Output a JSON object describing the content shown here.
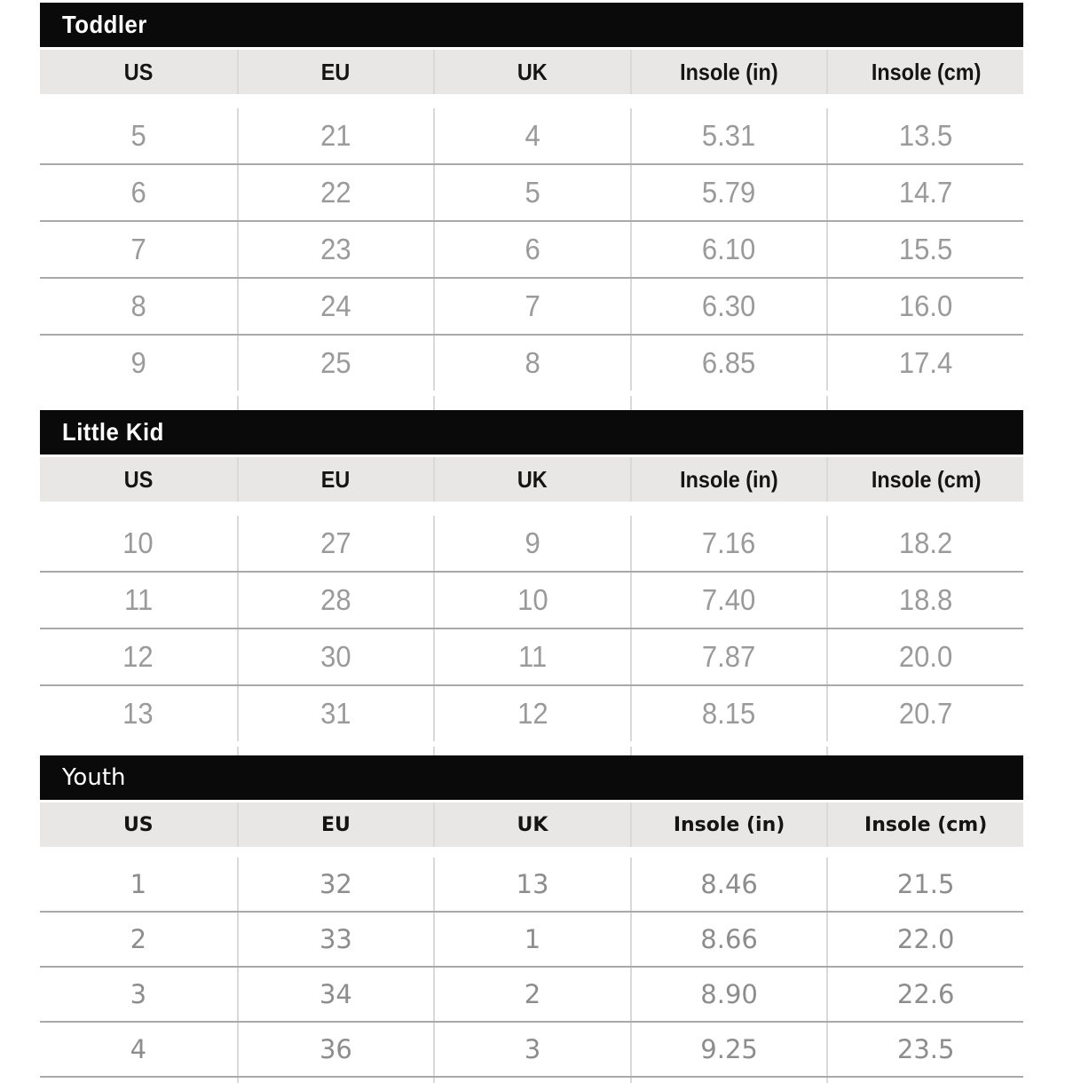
{
  "chart_data": [
    {
      "type": "table",
      "title": "Toddler",
      "columns": [
        "US",
        "EU",
        "UK",
        "Insole (in)",
        "Insole (cm)"
      ],
      "rows": [
        [
          "5",
          "21",
          "4",
          "5.31",
          "13.5"
        ],
        [
          "6",
          "22",
          "5",
          "5.79",
          "14.7"
        ],
        [
          "7",
          "23",
          "6",
          "6.10",
          "15.5"
        ],
        [
          "8",
          "24",
          "7",
          "6.30",
          "16.0"
        ],
        [
          "9",
          "25",
          "8",
          "6.85",
          "17.4"
        ]
      ]
    },
    {
      "type": "table",
      "title": "Little Kid",
      "columns": [
        "US",
        "EU",
        "UK",
        "Insole (in)",
        "Insole (cm)"
      ],
      "rows": [
        [
          "10",
          "27",
          "9",
          "7.16",
          "18.2"
        ],
        [
          "11",
          "28",
          "10",
          "7.40",
          "18.8"
        ],
        [
          "12",
          "30",
          "11",
          "7.87",
          "20.0"
        ],
        [
          "13",
          "31",
          "12",
          "8.15",
          "20.7"
        ]
      ]
    },
    {
      "type": "table",
      "title": "Youth",
      "columns": [
        "US",
        "EU",
        "UK",
        "Insole (in)",
        "Insole (cm)"
      ],
      "rows": [
        [
          "1",
          "32",
          "13",
          "8.46",
          "21.5"
        ],
        [
          "2",
          "33",
          "1",
          "8.66",
          "22.0"
        ],
        [
          "3",
          "34",
          "2",
          "8.90",
          "22.6"
        ],
        [
          "4",
          "36",
          "3",
          "9.25",
          "23.5"
        ]
      ]
    }
  ],
  "colors": {
    "section_bar_bg": "#0a0a0a",
    "section_bar_text": "#ffffff",
    "header_row_bg": "#e8e7e5",
    "header_text": "#141414",
    "data_text": "#9a9a9a",
    "data_text_youth": "#8d8d8d",
    "row_border": "#a9a9a9",
    "column_divider": "#d9d9d9",
    "page_bg": "#ffffff"
  }
}
